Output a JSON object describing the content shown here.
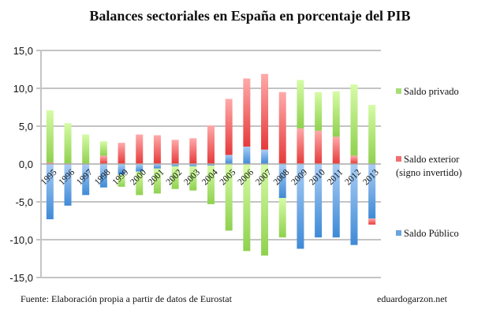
{
  "chart_data": {
    "type": "bar",
    "stacked": true,
    "title": "Balances sectoriales en España en porcentaje del PIB",
    "categories": [
      "1995",
      "1996",
      "1997",
      "1998",
      "1999",
      "2000",
      "2001",
      "2002",
      "2003",
      "2004",
      "2005",
      "2006",
      "2007",
      "2008",
      "2009",
      "2010",
      "2011",
      "2012",
      "2013"
    ],
    "series": [
      {
        "name": "Saldo Público",
        "color": "#4a90d9",
        "values": [
          -7.3,
          -5.5,
          -4.1,
          -3.1,
          -1.4,
          -1.0,
          -0.6,
          -0.3,
          -0.3,
          -0.2,
          1.2,
          2.3,
          1.9,
          -4.5,
          -11.2,
          -9.7,
          -9.7,
          -10.7,
          -7.2
        ]
      },
      {
        "name": "Saldo exterior (signo invertido)",
        "color": "#ee4444",
        "values": [
          0.2,
          0.1,
          0.0,
          1.1,
          2.8,
          3.9,
          3.8,
          3.2,
          3.4,
          5.1,
          7.4,
          9.0,
          10.0,
          9.5,
          4.7,
          4.4,
          3.6,
          1.1,
          -0.8
        ]
      },
      {
        "name": "Saldo privado",
        "color": "#8fd14f",
        "values": [
          6.9,
          5.3,
          3.9,
          1.9,
          -1.6,
          -3.1,
          -3.3,
          -3.0,
          -3.2,
          -5.1,
          -8.8,
          -11.5,
          -12.1,
          -5.2,
          6.4,
          5.1,
          6.0,
          9.4,
          7.8
        ]
      }
    ],
    "ylim": [
      -15,
      15
    ],
    "yticks": [
      15,
      10,
      5,
      0,
      -5,
      -10,
      -15
    ],
    "ytick_labels": [
      "15,0",
      "10,0",
      "5,0",
      "0,0",
      "-5,0",
      "-10,0",
      "-15,0"
    ],
    "grid": true,
    "legend_placement": "right"
  },
  "legend": {
    "private": "Saldo privado",
    "exterior_1": "Saldo exterior",
    "exterior_2": "(signo invertido)",
    "public": "Saldo Público"
  },
  "footer": {
    "source": "Fuente: Elaboración propia a partir de datos de Eurostat",
    "site": "eduardogarzon.net"
  }
}
